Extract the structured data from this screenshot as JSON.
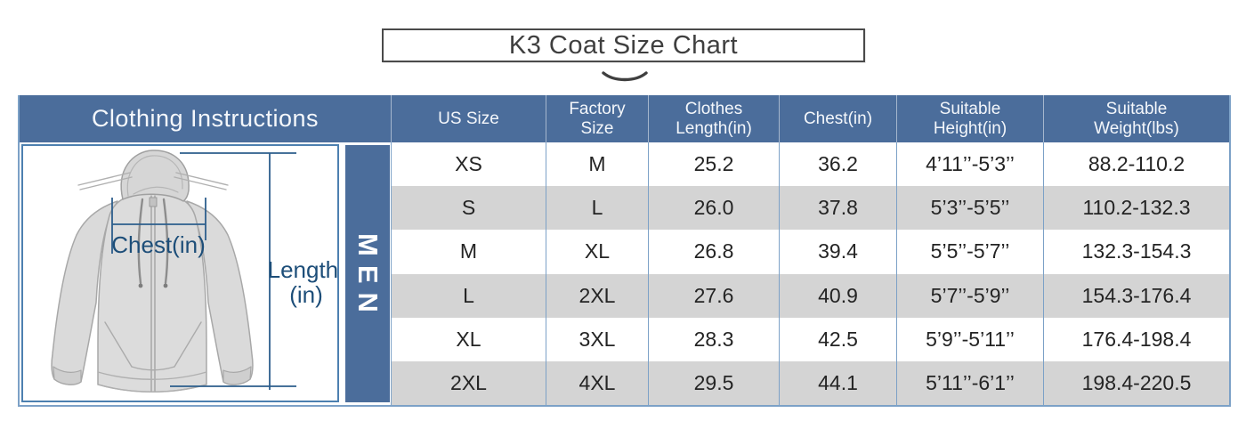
{
  "title": "K3 Coat Size Chart",
  "colors": {
    "header_blue": "#4b6d9b",
    "alt_row_gray": "#d4d4d4",
    "grid_line_blue": "#7ca1c7",
    "measure_line_blue": "#2d5e8c",
    "label_navy": "#1d4e79",
    "title_text": "#3f3f3f"
  },
  "table": {
    "left_header": "Clothing Instructions",
    "gender_label": "MEN",
    "header_lines": [
      [
        "US Size"
      ],
      [
        "Factory",
        "Size"
      ],
      [
        "Clothes",
        "Length(in)"
      ],
      [
        "Chest(in)"
      ],
      [
        "Suitable",
        "Height(in)"
      ],
      [
        "Suitable",
        "Weight(lbs)"
      ]
    ],
    "rows": [
      [
        "XS",
        "M",
        "25.2",
        "36.2",
        "4’11’’-5’3’’",
        "88.2-110.2"
      ],
      [
        "S",
        "L",
        "26.0",
        "37.8",
        "5’3’’-5’5’’",
        "110.2-132.3"
      ],
      [
        "M",
        "XL",
        "26.8",
        "39.4",
        "5’5’’-5’7’’",
        "132.3-154.3"
      ],
      [
        "L",
        "2XL",
        "27.6",
        "40.9",
        "5’7’’-5’9’’",
        "154.3-176.4"
      ],
      [
        "XL",
        "3XL",
        "28.3",
        "42.5",
        "5’9’’-5’11’’",
        "176.4-198.4"
      ],
      [
        "2XL",
        "4XL",
        "29.5",
        "44.1",
        "5’11’’-6’1’’",
        "198.4-220.5"
      ]
    ]
  },
  "illustration": {
    "chest_label": "Chest(in)",
    "length_label_line1": "Length",
    "length_label_line2": "(in)"
  },
  "chart_data": {
    "type": "table",
    "title": "K3 Coat Size Chart",
    "columns": [
      "US Size",
      "Factory Size",
      "Clothes Length(in)",
      "Chest(in)",
      "Suitable Height(in)",
      "Suitable Weight(lbs)"
    ],
    "rows": [
      [
        "XS",
        "M",
        25.2,
        36.2,
        "4’11’’-5’3’’",
        "88.2-110.2"
      ],
      [
        "S",
        "L",
        26.0,
        37.8,
        "5’3’’-5’5’’",
        "110.2-132.3"
      ],
      [
        "M",
        "XL",
        26.8,
        39.4,
        "5’5’’-5’7’’",
        "132.3-154.3"
      ],
      [
        "L",
        "2XL",
        27.6,
        40.9,
        "5’7’’-5’9’’",
        "154.3-176.4"
      ],
      [
        "XL",
        "3XL",
        28.3,
        42.5,
        "5’9’’-5’11’’",
        "176.4-198.4"
      ],
      [
        "2XL",
        "4XL",
        29.5,
        44.1,
        "5’11’’-6’1’’",
        "198.4-220.5"
      ]
    ]
  }
}
